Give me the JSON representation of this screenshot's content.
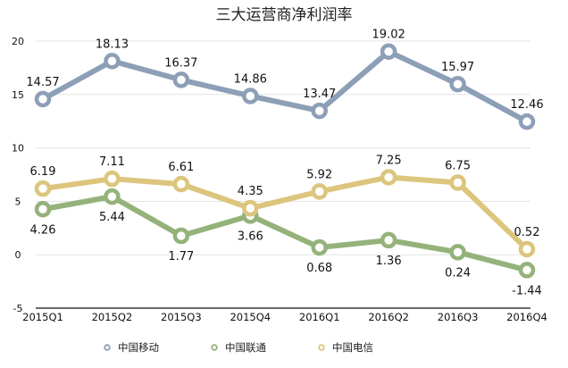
{
  "chart_data": {
    "type": "line",
    "title": "三大运营商净利润率",
    "xlabel": "",
    "ylabel": "",
    "categories": [
      "2015Q1",
      "2015Q2",
      "2015Q3",
      "2015Q4",
      "2016Q1",
      "2016Q2",
      "2016Q3",
      "2016Q4"
    ],
    "ylim": [
      -5,
      20
    ],
    "yticks": [
      -5,
      0,
      5,
      10,
      15,
      20
    ],
    "grid": true,
    "legend_position": "bottom",
    "series": [
      {
        "name": "中国移动",
        "color": "#8d9fb7",
        "values": [
          14.57,
          18.13,
          16.37,
          14.86,
          13.47,
          19.02,
          15.97,
          12.46
        ],
        "labels": [
          "14.57",
          "18.13",
          "16.37",
          "14.86",
          "13.47",
          "19.02",
          "15.97",
          "12.46"
        ],
        "label_pos": [
          "above",
          "above",
          "above",
          "above",
          "above",
          "above",
          "above",
          "above"
        ]
      },
      {
        "name": "中国联通",
        "color": "#94b27a",
        "values": [
          4.26,
          5.44,
          1.77,
          3.66,
          0.68,
          1.36,
          0.24,
          -1.44
        ],
        "labels": [
          "4.26",
          "5.44",
          "1.77",
          "3.66",
          "0.68",
          "1.36",
          "0.24",
          "-1.44"
        ],
        "label_pos": [
          "below",
          "below",
          "below",
          "below",
          "below",
          "below",
          "below",
          "below"
        ]
      },
      {
        "name": "中国电信",
        "color": "#dcc57c",
        "values": [
          6.19,
          7.11,
          6.61,
          4.35,
          5.92,
          7.25,
          6.75,
          0.52
        ],
        "labels": [
          "6.19",
          "7.11",
          "6.61",
          "4.35",
          "5.92",
          "7.25",
          "6.75",
          "0.52"
        ],
        "label_pos": [
          "above",
          "above",
          "above",
          "above",
          "above",
          "above",
          "above",
          "above"
        ]
      }
    ]
  }
}
